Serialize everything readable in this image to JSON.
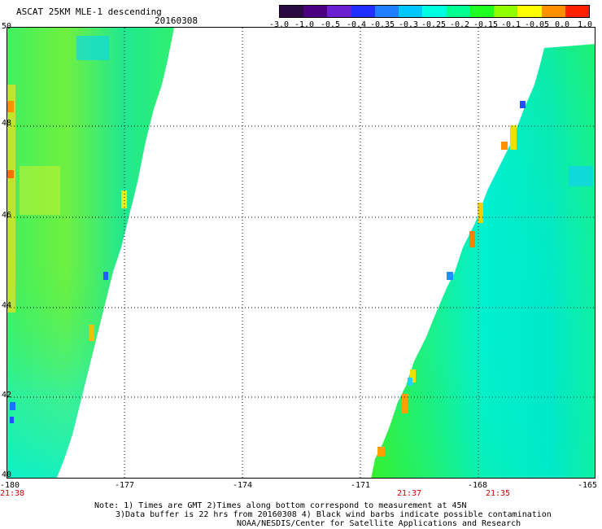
{
  "header": {
    "title": "ASCAT 25KM MLE-1 descending",
    "date": "20160308"
  },
  "colorbar": {
    "ticks": [
      "-3.0",
      "-1.0",
      "-0.5",
      "-0.4",
      "-0.35",
      "-0.3",
      "-0.25",
      "-0.2",
      "-0.15",
      "-0.1",
      "-0.05",
      "0.0",
      "1.0"
    ],
    "colors": [
      "#2a0a40",
      "#4b0082",
      "#6a1fd0",
      "#2030ff",
      "#1f7fff",
      "#00c8ff",
      "#00ffe0",
      "#00ff90",
      "#20ff20",
      "#90ff00",
      "#ffff00",
      "#ff9000",
      "#ff2000"
    ]
  },
  "map": {
    "y_axis": [
      "50",
      "48",
      "46",
      "44",
      "42",
      "40"
    ],
    "x_axis": [
      "-180",
      "-177",
      "-174",
      "-171",
      "-168",
      "-165"
    ],
    "time_labels": [
      "21:38",
      "21:37",
      "21:35"
    ],
    "lat_range": [
      40,
      50
    ],
    "lon_range": [
      -180,
      -165
    ]
  },
  "notes": {
    "line1": "Note: 1) Times are GMT 2)Times along bottom correspond to measurement at 45N",
    "line2": "3)Data buffer is 22 hrs from 20160308 4) Black wind barbs indicate possible contamination",
    "line3": "NOAA/NESDIS/Center for Satellite Applications and Research"
  }
}
